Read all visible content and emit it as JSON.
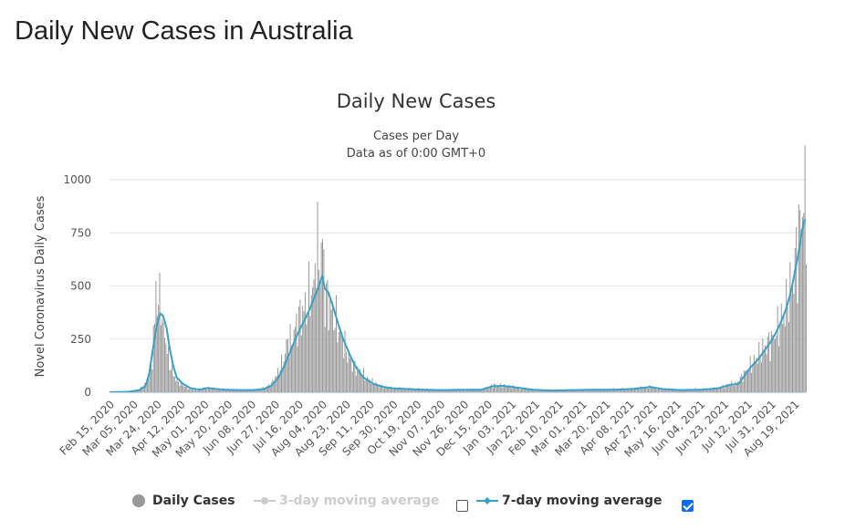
{
  "page": {
    "title": "Daily New Cases in Australia"
  },
  "chart_data": {
    "type": "bar",
    "title": "Daily New Cases",
    "subtitle_lines": [
      "Cases per Day",
      "Data as of 0:00 GMT+0"
    ],
    "ylabel": "Novel Coronavirus Daily Cases",
    "xlabel": "",
    "ylim": [
      0,
      1000
    ],
    "y_ticks": [
      0,
      250,
      500,
      750,
      1000
    ],
    "x_start": "2020-02-15",
    "x_end": "2021-08-28",
    "x_ticks": [
      "Feb 15, 2020",
      "Mar 05, 2020",
      "Mar 24, 2020",
      "Apr 12, 2020",
      "May 01, 2020",
      "May 20, 2020",
      "Jun 08, 2020",
      "Jun 27, 2020",
      "Jul 16, 2020",
      "Aug 04, 2020",
      "Aug 23, 2020",
      "Sep 11, 2020",
      "Sep 30, 2020",
      "Oct 19, 2020",
      "Nov 07, 2020",
      "Nov 26, 2020",
      "Dec 15, 2020",
      "Jan 03, 2021",
      "Jan 22, 2021",
      "Feb 10, 2021",
      "Mar 01, 2021",
      "Mar 20, 2021",
      "Apr 08, 2021",
      "Apr 27, 2021",
      "May 16, 2021",
      "Jun 04, 2021",
      "Jun 23, 2021",
      "Jul 12, 2021",
      "Jul 31, 2021",
      "Aug 19, 2021"
    ],
    "grid": true,
    "legend_position": "bottom",
    "series": [
      {
        "name": "Daily Cases",
        "type": "bar",
        "color": "#999999",
        "points": [
          [
            "2020-02-15",
            0
          ],
          [
            "2020-03-01",
            2
          ],
          [
            "2020-03-10",
            15
          ],
          [
            "2020-03-15",
            40
          ],
          [
            "2020-03-18",
            100
          ],
          [
            "2020-03-20",
            160
          ],
          [
            "2020-03-22",
            330
          ],
          [
            "2020-03-23",
            530
          ],
          [
            "2020-03-24",
            420
          ],
          [
            "2020-03-25",
            380
          ],
          [
            "2020-03-27",
            520
          ],
          [
            "2020-03-28",
            300
          ],
          [
            "2020-03-30",
            280
          ],
          [
            "2020-04-02",
            160
          ],
          [
            "2020-04-05",
            100
          ],
          [
            "2020-04-08",
            60
          ],
          [
            "2020-04-12",
            40
          ],
          [
            "2020-04-16",
            25
          ],
          [
            "2020-04-20",
            15
          ],
          [
            "2020-04-25",
            10
          ],
          [
            "2020-05-01",
            20
          ],
          [
            "2020-05-08",
            18
          ],
          [
            "2020-05-15",
            12
          ],
          [
            "2020-05-22",
            10
          ],
          [
            "2020-06-01",
            10
          ],
          [
            "2020-06-10",
            12
          ],
          [
            "2020-06-18",
            20
          ],
          [
            "2020-06-24",
            40
          ],
          [
            "2020-06-28",
            80
          ],
          [
            "2020-07-01",
            120
          ],
          [
            "2020-07-04",
            150
          ],
          [
            "2020-07-07",
            250
          ],
          [
            "2020-07-10",
            230
          ],
          [
            "2020-07-13",
            300
          ],
          [
            "2020-07-16",
            350
          ],
          [
            "2020-07-19",
            380
          ],
          [
            "2020-07-22",
            400
          ],
          [
            "2020-07-25",
            470
          ],
          [
            "2020-07-28",
            480
          ],
          [
            "2020-07-30",
            720
          ],
          [
            "2020-08-01",
            600
          ],
          [
            "2020-08-03",
            640
          ],
          [
            "2020-08-04",
            710
          ],
          [
            "2020-08-06",
            460
          ],
          [
            "2020-08-09",
            420
          ],
          [
            "2020-08-12",
            370
          ],
          [
            "2020-08-15",
            330
          ],
          [
            "2020-08-18",
            280
          ],
          [
            "2020-08-21",
            230
          ],
          [
            "2020-08-24",
            180
          ],
          [
            "2020-08-27",
            150
          ],
          [
            "2020-08-30",
            120
          ],
          [
            "2020-09-03",
            100
          ],
          [
            "2020-09-08",
            70
          ],
          [
            "2020-09-14",
            45
          ],
          [
            "2020-09-20",
            30
          ],
          [
            "2020-09-28",
            20
          ],
          [
            "2020-10-08",
            18
          ],
          [
            "2020-10-20",
            15
          ],
          [
            "2020-11-01",
            12
          ],
          [
            "2020-11-15",
            10
          ],
          [
            "2020-11-28",
            12
          ],
          [
            "2020-12-10",
            12
          ],
          [
            "2020-12-20",
            35
          ],
          [
            "2020-12-28",
            30
          ],
          [
            "2021-01-05",
            25
          ],
          [
            "2021-01-15",
            15
          ],
          [
            "2021-01-28",
            10
          ],
          [
            "2021-02-10",
            10
          ],
          [
            "2021-02-25",
            12
          ],
          [
            "2021-03-10",
            12
          ],
          [
            "2021-03-25",
            15
          ],
          [
            "2021-04-05",
            15
          ],
          [
            "2021-04-15",
            20
          ],
          [
            "2021-04-25",
            25
          ],
          [
            "2021-05-05",
            15
          ],
          [
            "2021-05-15",
            10
          ],
          [
            "2021-05-28",
            15
          ],
          [
            "2021-06-10",
            15
          ],
          [
            "2021-06-22",
            25
          ],
          [
            "2021-06-28",
            40
          ],
          [
            "2021-07-03",
            40
          ],
          [
            "2021-07-08",
            80
          ],
          [
            "2021-07-12",
            110
          ],
          [
            "2021-07-16",
            140
          ],
          [
            "2021-07-20",
            170
          ],
          [
            "2021-07-24",
            200
          ],
          [
            "2021-07-28",
            230
          ],
          [
            "2021-08-01",
            250
          ],
          [
            "2021-08-05",
            300
          ],
          [
            "2021-08-08",
            340
          ],
          [
            "2021-08-11",
            380
          ],
          [
            "2021-08-14",
            460
          ],
          [
            "2021-08-17",
            500
          ],
          [
            "2021-08-20",
            650
          ],
          [
            "2021-08-22",
            740
          ],
          [
            "2021-08-24",
            830
          ],
          [
            "2021-08-25",
            880
          ],
          [
            "2021-08-26",
            900
          ],
          [
            "2021-08-27",
            870
          ]
        ]
      },
      {
        "name": "3-day moving average",
        "type": "line",
        "color": "#cccccc",
        "visible": false
      },
      {
        "name": "7-day moving average",
        "type": "line",
        "color": "#39a0c7",
        "points": [
          [
            "2020-02-15",
            0
          ],
          [
            "2020-03-01",
            2
          ],
          [
            "2020-03-10",
            10
          ],
          [
            "2020-03-15",
            30
          ],
          [
            "2020-03-18",
            90
          ],
          [
            "2020-03-20",
            170
          ],
          [
            "2020-03-23",
            280
          ],
          [
            "2020-03-25",
            340
          ],
          [
            "2020-03-27",
            370
          ],
          [
            "2020-03-29",
            360
          ],
          [
            "2020-04-01",
            300
          ],
          [
            "2020-04-03",
            220
          ],
          [
            "2020-04-06",
            130
          ],
          [
            "2020-04-09",
            70
          ],
          [
            "2020-04-14",
            40
          ],
          [
            "2020-04-20",
            20
          ],
          [
            "2020-04-27",
            12
          ],
          [
            "2020-05-04",
            20
          ],
          [
            "2020-05-10",
            16
          ],
          [
            "2020-05-18",
            12
          ],
          [
            "2020-06-01",
            10
          ],
          [
            "2020-06-10",
            10
          ],
          [
            "2020-06-18",
            15
          ],
          [
            "2020-06-24",
            30
          ],
          [
            "2020-06-30",
            70
          ],
          [
            "2020-07-05",
            130
          ],
          [
            "2020-07-10",
            200
          ],
          [
            "2020-07-15",
            270
          ],
          [
            "2020-07-20",
            330
          ],
          [
            "2020-07-25",
            390
          ],
          [
            "2020-07-29",
            450
          ],
          [
            "2020-08-01",
            490
          ],
          [
            "2020-08-04",
            550
          ],
          [
            "2020-08-06",
            490
          ],
          [
            "2020-08-09",
            470
          ],
          [
            "2020-08-13",
            400
          ],
          [
            "2020-08-17",
            320
          ],
          [
            "2020-08-21",
            250
          ],
          [
            "2020-08-26",
            180
          ],
          [
            "2020-08-31",
            120
          ],
          [
            "2020-09-06",
            70
          ],
          [
            "2020-09-14",
            40
          ],
          [
            "2020-09-22",
            25
          ],
          [
            "2020-10-01",
            18
          ],
          [
            "2020-10-12",
            15
          ],
          [
            "2020-10-25",
            12
          ],
          [
            "2020-11-10",
            10
          ],
          [
            "2020-11-25",
            12
          ],
          [
            "2020-12-10",
            12
          ],
          [
            "2020-12-19",
            28
          ],
          [
            "2020-12-28",
            30
          ],
          [
            "2021-01-08",
            22
          ],
          [
            "2021-01-20",
            12
          ],
          [
            "2021-02-05",
            8
          ],
          [
            "2021-02-20",
            10
          ],
          [
            "2021-03-10",
            12
          ],
          [
            "2021-03-25",
            12
          ],
          [
            "2021-04-10",
            15
          ],
          [
            "2021-04-25",
            25
          ],
          [
            "2021-05-05",
            15
          ],
          [
            "2021-05-20",
            10
          ],
          [
            "2021-06-05",
            12
          ],
          [
            "2021-06-18",
            18
          ],
          [
            "2021-06-28",
            35
          ],
          [
            "2021-07-05",
            40
          ],
          [
            "2021-07-10",
            80
          ],
          [
            "2021-07-15",
            120
          ],
          [
            "2021-07-20",
            150
          ],
          [
            "2021-07-25",
            190
          ],
          [
            "2021-07-30",
            230
          ],
          [
            "2021-08-04",
            280
          ],
          [
            "2021-08-08",
            330
          ],
          [
            "2021-08-12",
            390
          ],
          [
            "2021-08-16",
            470
          ],
          [
            "2021-08-19",
            560
          ],
          [
            "2021-08-22",
            650
          ],
          [
            "2021-08-25",
            760
          ],
          [
            "2021-08-27",
            810
          ]
        ]
      }
    ],
    "legend": {
      "items": [
        {
          "label": "Daily Cases",
          "checked": null
        },
        {
          "label": "3-day moving average",
          "checked": false
        },
        {
          "label": "7-day moving average",
          "checked": true
        }
      ]
    }
  }
}
